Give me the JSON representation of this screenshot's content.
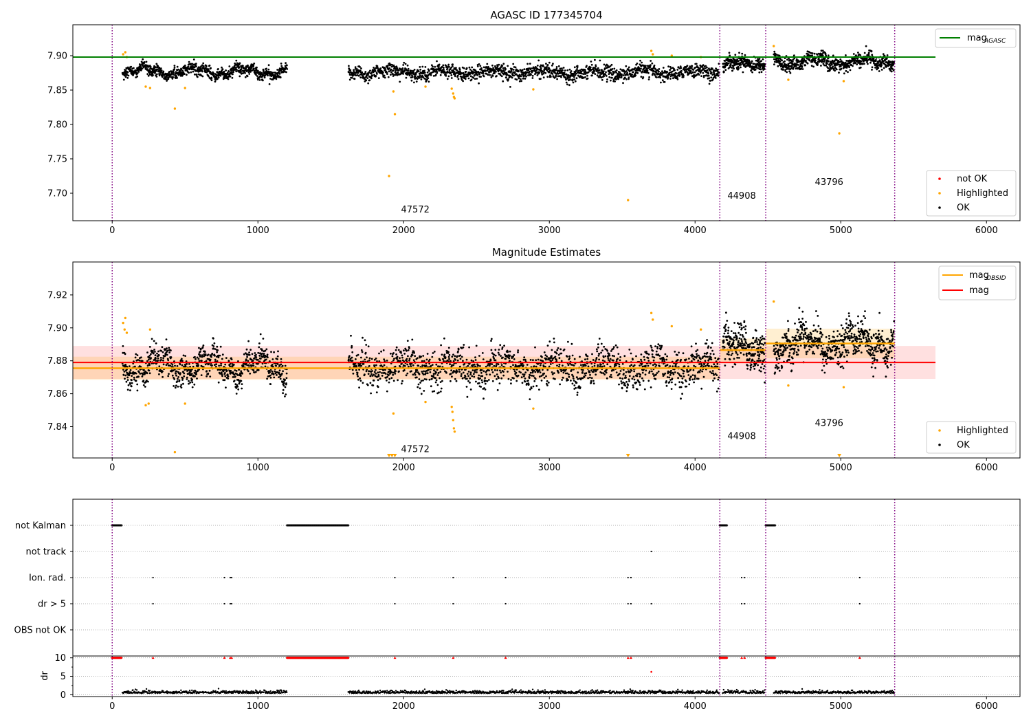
{
  "chart_data": [
    {
      "type": "scatter",
      "title": "AGASC ID 177345704",
      "xlim": [
        -270,
        6230
      ],
      "ylim": [
        7.66,
        7.945
      ],
      "yticks": [
        7.7,
        7.75,
        7.8,
        7.85,
        7.9
      ],
      "ytick_labels": [
        "7.70",
        "7.75",
        "7.80",
        "7.85",
        "7.90"
      ],
      "xticks": [
        0,
        1000,
        2000,
        3000,
        4000,
        5000,
        6000
      ],
      "xtick_labels": [
        "0",
        "1000",
        "2000",
        "3000",
        "4000",
        "5000",
        "6000"
      ],
      "obs_boundaries": [
        0,
        4170,
        4485,
        5370
      ],
      "obs_labels": [
        {
          "text": "47572",
          "x": 2080,
          "y": 7.672
        },
        {
          "text": "44908",
          "x": 4320,
          "y": 7.692
        },
        {
          "text": "43796",
          "x": 4920,
          "y": 7.712
        }
      ],
      "agasc_mag_line": {
        "value": 7.898,
        "x": [
          -270,
          5650
        ],
        "color": "#008000"
      },
      "segments": [
        {
          "x0": 70,
          "x1": 1200,
          "mean": 7.877,
          "amp": 0.008,
          "noise": 0.004,
          "n": 780
        },
        {
          "x0": 1620,
          "x1": 4165,
          "mean": 7.876,
          "amp": 0.006,
          "noise": 0.005,
          "n": 1500
        },
        {
          "x0": 4190,
          "x1": 4480,
          "mean": 7.888,
          "amp": 0.006,
          "noise": 0.005,
          "n": 260
        },
        {
          "x0": 4540,
          "x1": 5365,
          "mean": 7.891,
          "amp": 0.008,
          "noise": 0.005,
          "n": 650
        }
      ],
      "highlighted_points": [
        [
          75,
          7.902
        ],
        [
          90,
          7.905
        ],
        [
          100,
          7.898
        ],
        [
          230,
          7.855
        ],
        [
          260,
          7.853
        ],
        [
          430,
          7.823
        ],
        [
          500,
          7.853
        ],
        [
          1900,
          7.725
        ],
        [
          1930,
          7.848
        ],
        [
          1940,
          7.815
        ],
        [
          2150,
          7.855
        ],
        [
          2330,
          7.852
        ],
        [
          2340,
          7.845
        ],
        [
          2345,
          7.84
        ],
        [
          2350,
          7.838
        ],
        [
          2890,
          7.851
        ],
        [
          3540,
          7.69
        ],
        [
          3700,
          7.907
        ],
        [
          3710,
          7.902
        ],
        [
          3840,
          7.9
        ],
        [
          4040,
          7.898
        ],
        [
          4540,
          7.914
        ],
        [
          4640,
          7.865
        ],
        [
          4990,
          7.787
        ],
        [
          5020,
          7.863
        ]
      ],
      "legend_mag": {
        "label": "mag",
        "subscript": "AGASC",
        "placement": "upper right"
      },
      "legend_points": {
        "placement": "lower right",
        "items": [
          {
            "label": "not OK",
            "color": "#ff0000"
          },
          {
            "label": "Highlighted",
            "color": "#ffa500"
          },
          {
            "label": "OK",
            "color": "#000000"
          }
        ]
      }
    },
    {
      "type": "scatter",
      "title": "Magnitude Estimates",
      "xlim": [
        -270,
        6230
      ],
      "ylim": [
        7.821,
        7.94
      ],
      "yticks": [
        7.84,
        7.86,
        7.88,
        7.9,
        7.92
      ],
      "ytick_labels": [
        "7.84",
        "7.86",
        "7.88",
        "7.90",
        "7.92"
      ],
      "xticks": [
        0,
        1000,
        2000,
        3000,
        4000,
        5000,
        6000
      ],
      "xtick_labels": [
        "0",
        "1000",
        "2000",
        "3000",
        "4000",
        "5000",
        "6000"
      ],
      "obs_boundaries": [
        0,
        4170,
        4485,
        5370
      ],
      "obs_labels": [
        {
          "text": "47572",
          "x": 2080,
          "y": 7.8245
        },
        {
          "text": "44908",
          "x": 4320,
          "y": 7.8325
        },
        {
          "text": "43796",
          "x": 4920,
          "y": 7.8405
        }
      ],
      "mag_line": {
        "value": 7.879,
        "band": [
          7.869,
          7.889
        ],
        "x": [
          -270,
          5650
        ],
        "color": "#ff0000"
      },
      "obsid_mags": [
        {
          "x0": -270,
          "x1": 4170,
          "mag": 7.8755,
          "band": [
            7.8685,
            7.8825
          ]
        },
        {
          "x0": 4170,
          "x1": 4485,
          "mag": 7.8865,
          "band": [
            7.8795,
            7.8935
          ]
        },
        {
          "x0": 4485,
          "x1": 5370,
          "mag": 7.8905,
          "band": [
            7.8815,
            7.8995
          ]
        }
      ],
      "segments": [
        {
          "x0": 70,
          "x1": 1200,
          "mean": 7.877,
          "amp": 0.008,
          "noise": 0.0045,
          "n": 780
        },
        {
          "x0": 1620,
          "x1": 4165,
          "mean": 7.876,
          "amp": 0.006,
          "noise": 0.0055,
          "n": 1500
        },
        {
          "x0": 4190,
          "x1": 4480,
          "mean": 7.888,
          "amp": 0.006,
          "noise": 0.006,
          "n": 260
        },
        {
          "x0": 4540,
          "x1": 5365,
          "mean": 7.891,
          "amp": 0.008,
          "noise": 0.0055,
          "n": 650
        }
      ],
      "highlighted_points": [
        [
          75,
          7.903
        ],
        [
          85,
          7.899
        ],
        [
          90,
          7.906
        ],
        [
          100,
          7.897
        ],
        [
          230,
          7.853
        ],
        [
          250,
          7.854
        ],
        [
          260,
          7.899
        ],
        [
          430,
          7.8245
        ],
        [
          500,
          7.854
        ],
        [
          1930,
          7.848
        ],
        [
          2150,
          7.855
        ],
        [
          2330,
          7.852
        ],
        [
          2335,
          7.849
        ],
        [
          2340,
          7.844
        ],
        [
          2345,
          7.839
        ],
        [
          2350,
          7.837
        ],
        [
          2890,
          7.851
        ],
        [
          3700,
          7.909
        ],
        [
          3710,
          7.905
        ],
        [
          3840,
          7.901
        ],
        [
          4040,
          7.899
        ],
        [
          4540,
          7.916
        ],
        [
          4640,
          7.865
        ],
        [
          5020,
          7.864
        ]
      ],
      "low_markers": [
        1900,
        1920,
        1940,
        3540,
        4990
      ],
      "legend_lines": {
        "placement": "upper right",
        "items": [
          {
            "label": "mag",
            "subscript": "OBSID",
            "color": "#ffa500"
          },
          {
            "label": "mag",
            "subscript": "",
            "color": "#ff0000"
          }
        ]
      },
      "legend_points": {
        "placement": "lower right",
        "items": [
          {
            "label": "Highlighted",
            "color": "#ffa500"
          },
          {
            "label": "OK",
            "color": "#000000"
          }
        ]
      }
    },
    {
      "type": "scatter",
      "xlim": [
        -270,
        6230
      ],
      "flag_rows": [
        "not Kalman",
        "not track",
        "Ion. rad.",
        "dr > 5",
        "OBS not OK"
      ],
      "obs_boundaries": [
        0,
        4170,
        4485,
        5370
      ],
      "not_kalman_ranges": [
        [
          0,
          65
        ],
        [
          1200,
          1620
        ],
        [
          4170,
          4220
        ],
        [
          4485,
          4550
        ]
      ],
      "not_track_points": [
        3700
      ],
      "ion_rad_points": [
        280,
        770,
        810,
        820,
        1940,
        2340,
        2700,
        3540,
        3560,
        4320,
        4340,
        5130
      ],
      "dr_gt5_points": [
        280,
        770,
        810,
        820,
        1940,
        2340,
        2700,
        3540,
        3560,
        3700,
        4320,
        4340,
        5130
      ],
      "dr_ylabel": "dr",
      "dr_ylim": [
        -0.5,
        10.5
      ],
      "dr_yticks": [
        0,
        5,
        10
      ],
      "dr_ytick_labels": [
        "0",
        "5",
        "10"
      ],
      "xticks": [
        0,
        1000,
        2000,
        3000,
        4000,
        5000,
        6000
      ],
      "xtick_labels": [
        "0",
        "1000",
        "2000",
        "3000",
        "4000",
        "5000",
        "6000"
      ],
      "dr_clipped_value": 10,
      "dr_extra_point": [
        3700,
        6.2
      ],
      "dr_good_segments": [
        [
          70,
          1200
        ],
        [
          1620,
          4165
        ],
        [
          4190,
          4480
        ],
        [
          4540,
          5365
        ]
      ]
    }
  ]
}
